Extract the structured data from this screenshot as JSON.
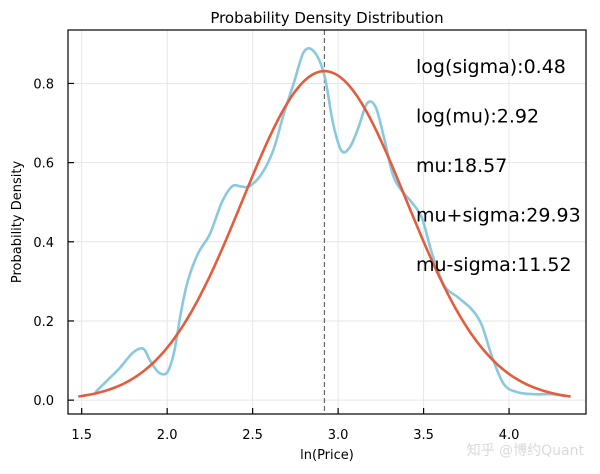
{
  "chart_data": {
    "type": "line",
    "title": "Probability Density Distribution",
    "xlabel": "ln(Price)",
    "ylabel": "Probability Density",
    "xlim": [
      1.42,
      4.45
    ],
    "ylim": [
      -0.035,
      0.935
    ],
    "x_ticks": [
      1.5,
      2.0,
      2.5,
      3.0,
      3.5,
      4.0
    ],
    "x_tick_labels": [
      "1.5",
      "2.0",
      "2.5",
      "3.0",
      "3.5",
      "4.0"
    ],
    "y_ticks": [
      0.0,
      0.2,
      0.4,
      0.6,
      0.8
    ],
    "y_tick_labels": [
      "0.0",
      "0.2",
      "0.4",
      "0.6",
      "0.8"
    ],
    "grid": true,
    "vline": {
      "x": 2.92,
      "style": "dashed",
      "color": "#666666"
    },
    "series": [
      {
        "color": "#89c9e0",
        "x": [
          1.58,
          1.65,
          1.72,
          1.8,
          1.86,
          1.9,
          1.95,
          2.0,
          2.04,
          2.08,
          2.12,
          2.18,
          2.25,
          2.32,
          2.38,
          2.43,
          2.48,
          2.55,
          2.62,
          2.68,
          2.74,
          2.8,
          2.86,
          2.92,
          2.97,
          3.02,
          3.07,
          3.12,
          3.17,
          3.22,
          3.27,
          3.32,
          3.37,
          3.43,
          3.49,
          3.55,
          3.62,
          3.7,
          3.78,
          3.84,
          3.9,
          3.97,
          4.05,
          4.15,
          4.25,
          4.33
        ],
        "y": [
          0.02,
          0.05,
          0.08,
          0.12,
          0.13,
          0.1,
          0.07,
          0.07,
          0.12,
          0.22,
          0.3,
          0.37,
          0.42,
          0.5,
          0.54,
          0.54,
          0.54,
          0.57,
          0.63,
          0.72,
          0.8,
          0.88,
          0.88,
          0.82,
          0.7,
          0.63,
          0.64,
          0.69,
          0.75,
          0.74,
          0.66,
          0.57,
          0.53,
          0.5,
          0.46,
          0.37,
          0.29,
          0.26,
          0.23,
          0.19,
          0.11,
          0.04,
          0.02,
          0.015,
          0.015,
          0.01
        ]
      },
      {
        "color": "#e45c3e",
        "mu": 2.92,
        "sigma": 0.48,
        "x_range": [
          1.48,
          4.36
        ]
      }
    ],
    "annotations": [
      "log(sigma):0.48",
      "log(mu):2.92",
      "mu:18.57",
      "mu+sigma:29.93",
      "mu-sigma:11.52"
    ]
  },
  "watermark": "知乎 @博约Quant"
}
